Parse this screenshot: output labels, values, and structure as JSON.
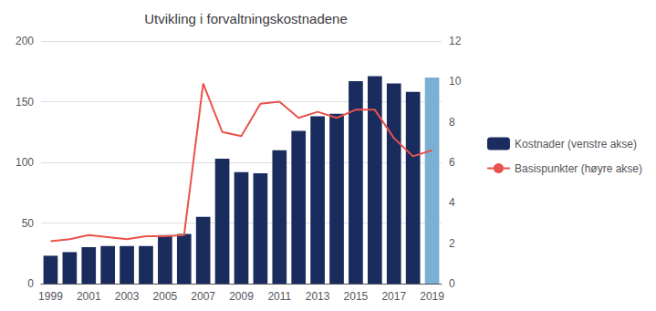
{
  "chart_data": {
    "type": "bar",
    "title": "Utvikling i forvaltningskostnadene",
    "categories": [
      "1999",
      null,
      "2001",
      null,
      "2003",
      null,
      "2005",
      null,
      "2007",
      null,
      "2009",
      null,
      "2011",
      null,
      "2013",
      null,
      "2015",
      null,
      "2017",
      null,
      "2019"
    ],
    "series": [
      {
        "name": "Kostnader (venstre akse)",
        "type": "bar",
        "color": "#1a2b5e",
        "colors": [
          "#1a2b5e",
          "#1a2b5e",
          "#1a2b5e",
          "#1a2b5e",
          "#1a2b5e",
          "#1a2b5e",
          "#1a2b5e",
          "#1a2b5e",
          "#1a2b5e",
          "#1a2b5e",
          "#1a2b5e",
          "#1a2b5e",
          "#1a2b5e",
          "#1a2b5e",
          "#1a2b5e",
          "#1a2b5e",
          "#1a2b5e",
          "#1a2b5e",
          "#1a2b5e",
          "#1a2b5e",
          "#7ab0d4"
        ],
        "values": [
          23,
          26,
          30,
          31,
          31,
          31,
          40,
          41,
          55,
          103,
          92,
          91,
          110,
          126,
          138,
          140,
          167,
          171,
          165,
          158,
          170
        ]
      },
      {
        "name": "Basispunkter (høyre akse)",
        "type": "line",
        "color": "#e8524a",
        "axis": "y2",
        "marker": "none",
        "values": [
          2.1,
          2.2,
          2.4,
          2.3,
          2.2,
          2.35,
          2.35,
          2.4,
          9.9,
          7.5,
          7.3,
          8.9,
          9.0,
          8.2,
          8.5,
          8.2,
          8.6,
          8.6,
          7.2,
          6.3,
          6.6
        ]
      }
    ],
    "ylim": [
      0,
      200
    ],
    "yticks": [
      0,
      50,
      100,
      150,
      200
    ],
    "y2lim": [
      0,
      12
    ],
    "y2ticks": [
      0,
      2,
      4,
      6,
      8,
      10,
      12
    ],
    "grid": true,
    "legend": "right"
  }
}
